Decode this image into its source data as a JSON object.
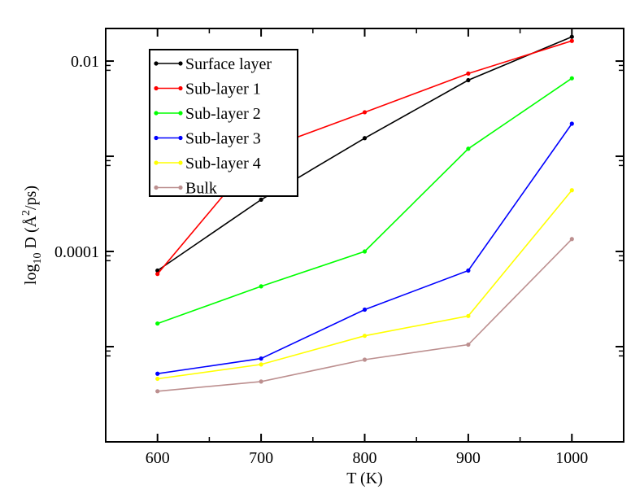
{
  "chart_data": {
    "type": "line",
    "title": "",
    "xlabel": "T (K)",
    "ylabel_parts": {
      "prefix": "log",
      "sub": "10",
      "mid": " D (",
      "unit_main": "Å",
      "sup": "2",
      "unit_tail": "/ps)"
    },
    "x_ticks": [
      "600",
      "700",
      "800",
      "900",
      "1000"
    ],
    "y_ticks": [
      "0.0001",
      "0.01"
    ],
    "xlim": [
      550,
      1050
    ],
    "ylim": [
      1e-06,
      0.022
    ],
    "y_scale": "log",
    "legend_position": "top-left",
    "x": [
      600,
      700,
      800,
      900,
      1000
    ],
    "series": [
      {
        "name": "Surface layer",
        "color": "#000000",
        "values": [
          6.3e-05,
          0.00035,
          0.00155,
          0.0063,
          0.018
        ]
      },
      {
        "name": "Sub-layer 1",
        "color": "#ff0000",
        "values": [
          5.8e-05,
          0.00115,
          0.0029,
          0.0074,
          0.0163
        ]
      },
      {
        "name": "Sub-layer 2",
        "color": "#00ff00",
        "values": [
          1.75e-05,
          4.3e-05,
          0.0001,
          0.0012,
          0.0066
        ]
      },
      {
        "name": "Sub-layer 3",
        "color": "#0000ff",
        "values": [
          5.2e-06,
          7.5e-06,
          2.45e-05,
          6.3e-05,
          0.0022
        ]
      },
      {
        "name": "Sub-layer 4",
        "color": "#ffff00",
        "values": [
          4.6e-06,
          6.5e-06,
          1.3e-05,
          2.1e-05,
          0.00044
        ]
      },
      {
        "name": "Bulk",
        "color": "#bc8f8f",
        "values": [
          3.4e-06,
          4.3e-06,
          7.3e-06,
          1.05e-05,
          0.000135
        ]
      }
    ]
  }
}
